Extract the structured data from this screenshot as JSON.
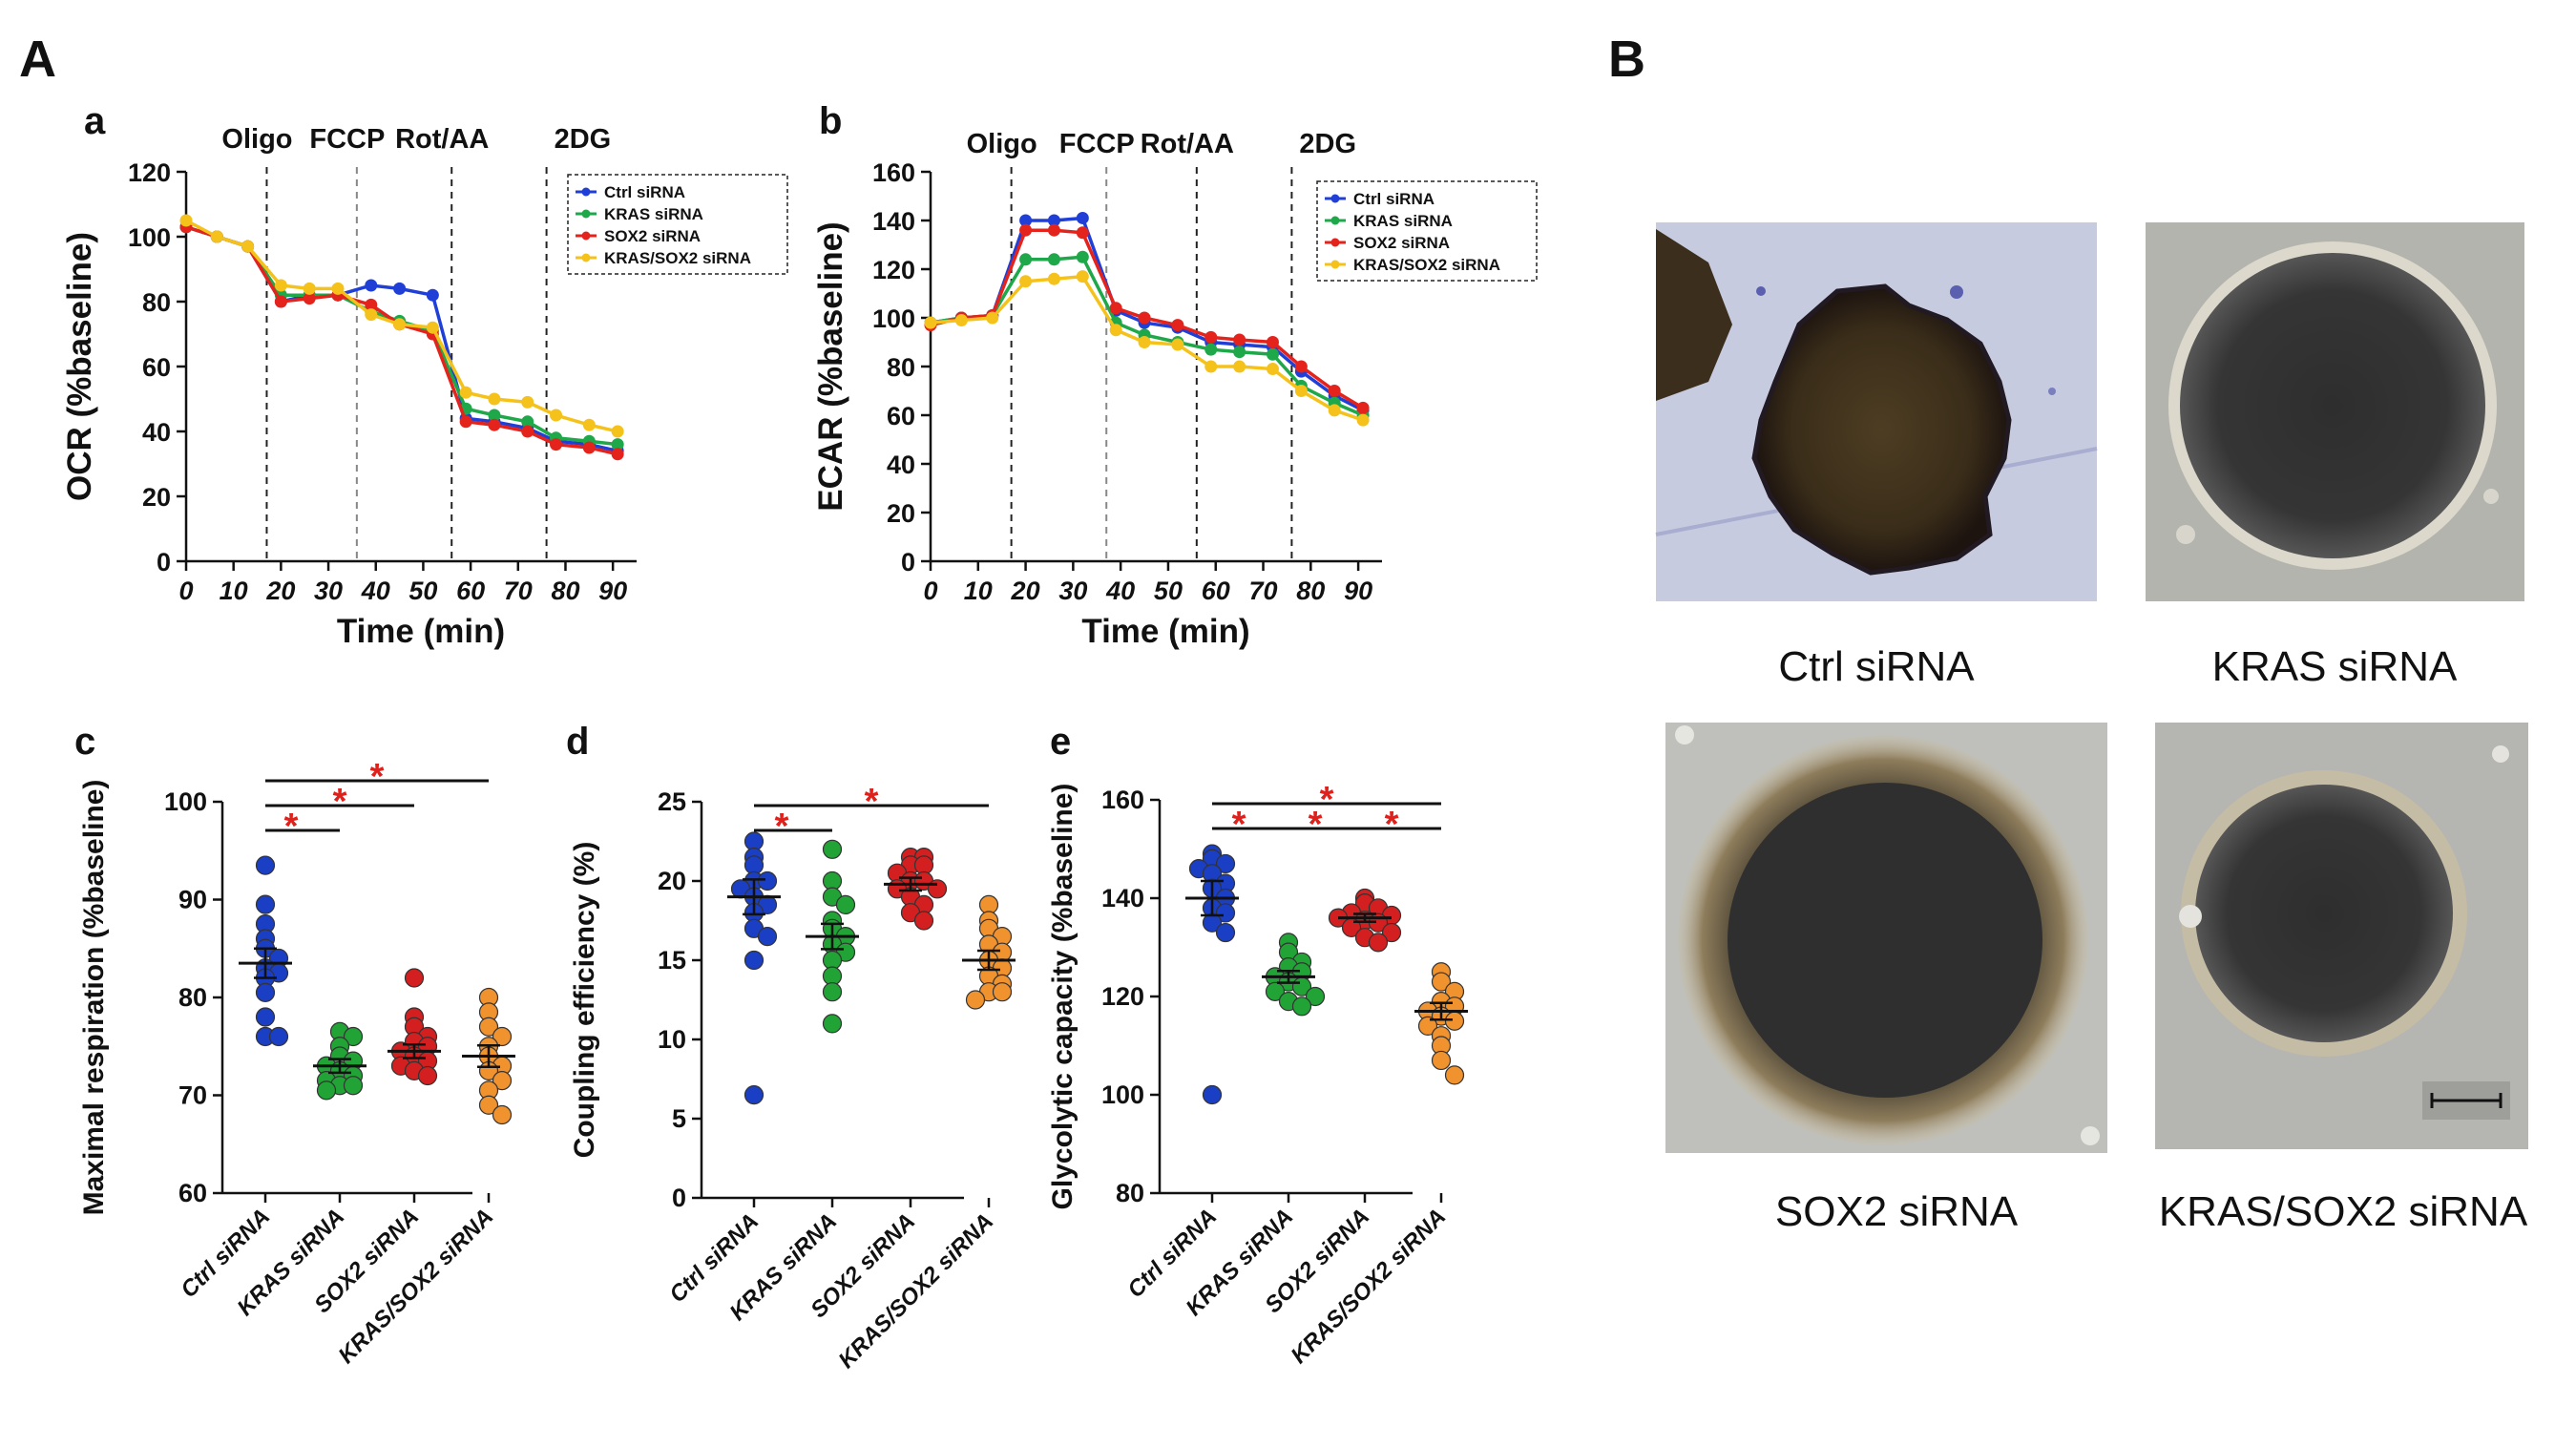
{
  "panel_labels": {
    "A": "A",
    "B": "B"
  },
  "colors": {
    "ctrl": "#1f3fd6",
    "kras": "#1fa84a",
    "sox2": "#e3231c",
    "kras_sox2": "#f5c21b",
    "dot_ctrl": "#1a3fc4",
    "dot_kras": "#21a336",
    "dot_sox2": "#d31f1f",
    "dot_kras_sox2": "#f0922e",
    "star": "#e0201b"
  },
  "chart_data": [
    {
      "id": "a",
      "panel_letter": "a",
      "type": "line",
      "ylabel": "OCR (%baseline)",
      "xlabel": "Time (min)",
      "xlim": [
        0,
        95
      ],
      "ylim": [
        0,
        120
      ],
      "xticks": [
        0,
        10,
        20,
        30,
        40,
        50,
        60,
        70,
        80,
        90
      ],
      "yticks": [
        0,
        20,
        40,
        60,
        80,
        100,
        120
      ],
      "xtick_labels": [
        "0",
        "10",
        "20",
        "30",
        "40",
        "50",
        "60",
        "70",
        "80",
        "90"
      ],
      "ytick_labels": [
        "0",
        "20",
        "40",
        "60",
        "80",
        "100",
        "120"
      ],
      "injections": [
        {
          "label": "Oligo",
          "x": 17
        },
        {
          "label": "FCCP",
          "x": 36
        },
        {
          "label": "Rot/AA",
          "x": 56
        },
        {
          "label": "2DG",
          "x": 76
        }
      ],
      "x": [
        0,
        6.5,
        13,
        20,
        26,
        32,
        39,
        45,
        52,
        59,
        65,
        72,
        78,
        85,
        91
      ],
      "series": [
        {
          "name": "Ctrl siRNA",
          "key": "ctrl",
          "values": [
            103,
            100,
            97,
            80,
            82,
            82,
            85,
            84,
            82,
            44,
            43,
            41,
            37,
            36,
            34
          ]
        },
        {
          "name": "KRAS siRNA",
          "key": "kras",
          "values": [
            103,
            100,
            97,
            82,
            82,
            82,
            77,
            74,
            71,
            47,
            45,
            43,
            38,
            37,
            36
          ]
        },
        {
          "name": "SOX2 siRNA",
          "key": "sox2",
          "values": [
            103,
            100,
            97,
            80,
            81,
            82,
            79,
            73,
            70,
            43,
            42,
            40,
            36,
            35,
            33
          ]
        },
        {
          "name": "KRAS/SOX2 siRNA",
          "key": "kras_sox2",
          "values": [
            105,
            100,
            97,
            85,
            84,
            84,
            76,
            73,
            72,
            52,
            50,
            49,
            45,
            42,
            40
          ]
        }
      ],
      "legend": [
        "Ctrl siRNA",
        "KRAS siRNA",
        "SOX2 siRNA",
        "KRAS/SOX2 siRNA"
      ]
    },
    {
      "id": "b",
      "panel_letter": "b",
      "type": "line",
      "ylabel": "ECAR (%baseline)",
      "xlabel": "Time (min)",
      "xlim": [
        0,
        95
      ],
      "ylim": [
        0,
        160
      ],
      "xticks": [
        0,
        10,
        20,
        30,
        40,
        50,
        60,
        70,
        80,
        90
      ],
      "yticks": [
        0,
        20,
        40,
        60,
        80,
        100,
        120,
        140,
        160
      ],
      "xtick_labels": [
        "0",
        "10",
        "20",
        "30",
        "40",
        "50",
        "60",
        "70",
        "80",
        "90"
      ],
      "ytick_labels": [
        "0",
        "20",
        "40",
        "60",
        "80",
        "100",
        "120",
        "140",
        "160"
      ],
      "injections": [
        {
          "label": "Oligo",
          "x": 17
        },
        {
          "label": "FCCP",
          "x": 37
        },
        {
          "label": "Rot/AA",
          "x": 56
        },
        {
          "label": "2DG",
          "x": 76
        }
      ],
      "x": [
        0,
        6.5,
        13,
        20,
        26,
        32,
        39,
        45,
        52,
        59,
        65,
        72,
        78,
        85,
        91
      ],
      "series": [
        {
          "name": "Ctrl siRNA",
          "key": "ctrl",
          "values": [
            98,
            100,
            101,
            140,
            140,
            141,
            103,
            98,
            96,
            90,
            89,
            88,
            78,
            68,
            62
          ]
        },
        {
          "name": "KRAS siRNA",
          "key": "kras",
          "values": [
            98,
            100,
            101,
            124,
            124,
            125,
            98,
            93,
            90,
            87,
            86,
            85,
            72,
            65,
            60
          ]
        },
        {
          "name": "SOX2 siRNA",
          "key": "sox2",
          "values": [
            97,
            100,
            101,
            136,
            136,
            135,
            104,
            100,
            97,
            92,
            91,
            90,
            80,
            70,
            63
          ]
        },
        {
          "name": "KRAS/SOX2 siRNA",
          "key": "kras_sox2",
          "values": [
            98,
            99,
            100,
            115,
            116,
            117,
            95,
            90,
            89,
            80,
            80,
            79,
            70,
            62,
            58
          ]
        }
      ],
      "legend": [
        "Ctrl siRNA",
        "KRAS siRNA",
        "SOX2 siRNA",
        "KRAS/SOX2 siRNA"
      ]
    },
    {
      "id": "c",
      "panel_letter": "c",
      "type": "scatter",
      "ylabel": "Maximal  respiration  (%baseline)",
      "ylim": [
        60,
        100
      ],
      "yticks": [
        60,
        70,
        80,
        90,
        100
      ],
      "ytick_labels": [
        "60",
        "70",
        "80",
        "90",
        "100"
      ],
      "categories": [
        "Ctrl siRNA",
        "KRAS siRNA",
        "SOX2 siRNA",
        "KRAS/SOX2 siRNA"
      ],
      "series": [
        {
          "name": "Ctrl siRNA",
          "key": "ctrl",
          "mean": 83.5,
          "sem": 1.5,
          "values": [
            93.5,
            89.5,
            87.5,
            86,
            85,
            84,
            83,
            82.5,
            82,
            80.5,
            78,
            76,
            76
          ]
        },
        {
          "name": "KRAS siRNA",
          "key": "kras",
          "mean": 73,
          "sem": 0.7,
          "values": [
            76.5,
            76,
            75,
            74,
            73.5,
            73,
            72.5,
            72,
            71.5,
            71,
            71,
            70.5
          ]
        },
        {
          "name": "SOX2 siRNA",
          "key": "sox2",
          "mean": 74.5,
          "sem": 0.7,
          "values": [
            82,
            78,
            77,
            76,
            75.5,
            75,
            74.5,
            74,
            73.5,
            73,
            72.5,
            72
          ]
        },
        {
          "name": "KRAS/SOX2 siRNA",
          "key": "kras_sox2",
          "mean": 74,
          "sem": 1.1,
          "values": [
            80,
            78.5,
            77,
            76,
            75,
            74,
            73,
            72.5,
            71.5,
            70.5,
            69,
            68
          ]
        }
      ],
      "significance": [
        {
          "from": 0,
          "to": 1,
          "level": 0,
          "label": "*"
        },
        {
          "from": 0,
          "to": 2,
          "level": 1,
          "label": "*"
        },
        {
          "from": 0,
          "to": 3,
          "level": 2,
          "label": "*"
        }
      ]
    },
    {
      "id": "d",
      "panel_letter": "d",
      "type": "scatter",
      "ylabel": "Coupling  efficiency  (%)",
      "ylim": [
        0,
        25
      ],
      "yticks": [
        0,
        5,
        10,
        15,
        20,
        25
      ],
      "ytick_labels": [
        "0",
        "5",
        "10",
        "15",
        "20",
        "25"
      ],
      "categories": [
        "Ctrl siRNA",
        "KRAS siRNA",
        "SOX2 siRNA",
        "KRAS/SOX2 siRNA"
      ],
      "series": [
        {
          "name": "Ctrl siRNA",
          "key": "ctrl",
          "mean": 19,
          "sem": 1.1,
          "values": [
            22.5,
            21.5,
            21,
            20,
            20,
            19.5,
            19,
            18.5,
            18,
            17,
            16.5,
            15,
            6.5
          ]
        },
        {
          "name": "KRAS siRNA",
          "key": "kras",
          "mean": 16.5,
          "sem": 0.8,
          "values": [
            22,
            20,
            19,
            18.5,
            17.5,
            17,
            16.5,
            16,
            15.5,
            15,
            14,
            13,
            11
          ]
        },
        {
          "name": "SOX2 siRNA",
          "key": "sox2",
          "mean": 19.8,
          "sem": 0.4,
          "values": [
            21.5,
            21.5,
            21,
            21,
            20.5,
            20,
            20,
            19.5,
            19.5,
            19,
            18.5,
            18,
            17.5
          ]
        },
        {
          "name": "KRAS/SOX2 siRNA",
          "key": "kras_sox2",
          "mean": 15,
          "sem": 0.6,
          "values": [
            18.5,
            17.5,
            17,
            16.5,
            16,
            15.5,
            15,
            14.5,
            14,
            13.5,
            13,
            13,
            12.5
          ]
        }
      ],
      "significance": [
        {
          "from": 0,
          "to": 1,
          "level": 0,
          "label": "*"
        },
        {
          "from": 0,
          "to": 3,
          "level": 1,
          "label": "*"
        }
      ]
    },
    {
      "id": "e",
      "panel_letter": "e",
      "type": "scatter",
      "ylabel": "Glycolytic  capacity  (%baseline)",
      "ylim": [
        80,
        160
      ],
      "yticks": [
        80,
        100,
        120,
        140,
        160
      ],
      "ytick_labels": [
        "80",
        "100",
        "120",
        "140",
        "160"
      ],
      "categories": [
        "Ctrl siRNA",
        "KRAS siRNA",
        "SOX2 siRNA",
        "KRAS/SOX2 siRNA"
      ],
      "series": [
        {
          "name": "Ctrl siRNA",
          "key": "ctrl",
          "mean": 140,
          "sem": 3.5,
          "values": [
            149,
            148,
            147,
            146,
            145,
            143,
            142,
            140,
            138,
            137,
            135,
            133,
            100
          ]
        },
        {
          "name": "KRAS siRNA",
          "key": "kras",
          "mean": 124,
          "sem": 1.2,
          "values": [
            131,
            129,
            127,
            126,
            125,
            124,
            123,
            122,
            121,
            120,
            119,
            118
          ]
        },
        {
          "name": "SOX2 siRNA",
          "key": "sox2",
          "mean": 136,
          "sem": 0.8,
          "values": [
            140,
            139,
            138,
            137,
            136.5,
            136,
            135.5,
            135,
            134,
            133,
            132,
            131
          ]
        },
        {
          "name": "KRAS/SOX2 siRNA",
          "key": "kras_sox2",
          "mean": 117,
          "sem": 1.7,
          "values": [
            125,
            123,
            121,
            119,
            118,
            117,
            116,
            115,
            114,
            112,
            110,
            107,
            104
          ]
        }
      ],
      "significance": [
        {
          "from": 0,
          "to": 1,
          "level": 0,
          "label": "*"
        },
        {
          "from": 1,
          "to": 2,
          "level": 0,
          "label": "*"
        },
        {
          "from": 2,
          "to": 3,
          "level": 0,
          "label": "*"
        },
        {
          "from": 0,
          "to": 3,
          "level": 1,
          "label": "*"
        }
      ]
    }
  ],
  "photos": [
    {
      "id": "ctrl",
      "caption": "Ctrl siRNA"
    },
    {
      "id": "kras",
      "caption": "KRAS siRNA"
    },
    {
      "id": "sox2",
      "caption": "SOX2 siRNA"
    },
    {
      "id": "kras_sox2",
      "caption": "KRAS/SOX2 siRNA"
    }
  ]
}
